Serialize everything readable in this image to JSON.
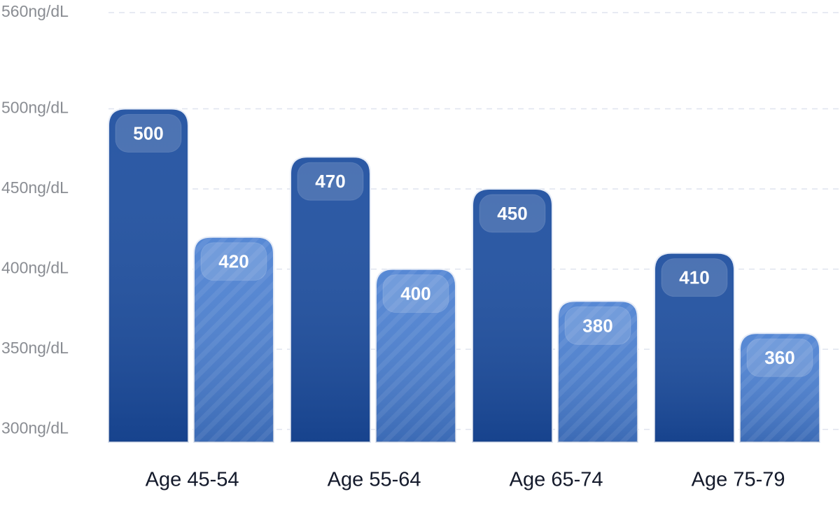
{
  "chart_data": {
    "type": "bar",
    "categories": [
      "Age 45-54",
      "Age 55-64",
      "Age 65-74",
      "Age 75-79"
    ],
    "series": [
      {
        "color": "#1d4e9f",
        "values": [
          500,
          470,
          450,
          410
        ]
      },
      {
        "color": "#4c81d2",
        "hatch": true,
        "values": [
          420,
          400,
          380,
          360
        ]
      }
    ],
    "ylim": [
      292,
      560
    ],
    "yticks": [
      {
        "value": 300,
        "label": "300ng/dL"
      },
      {
        "value": 350,
        "label": "350ng/dL"
      },
      {
        "value": 400,
        "label": "400ng/dL"
      },
      {
        "value": 450,
        "label": "450ng/dL"
      },
      {
        "value": 500,
        "label": "500ng/dL"
      },
      {
        "value": 560,
        "label": "560ng/dL"
      }
    ],
    "grid": true
  }
}
